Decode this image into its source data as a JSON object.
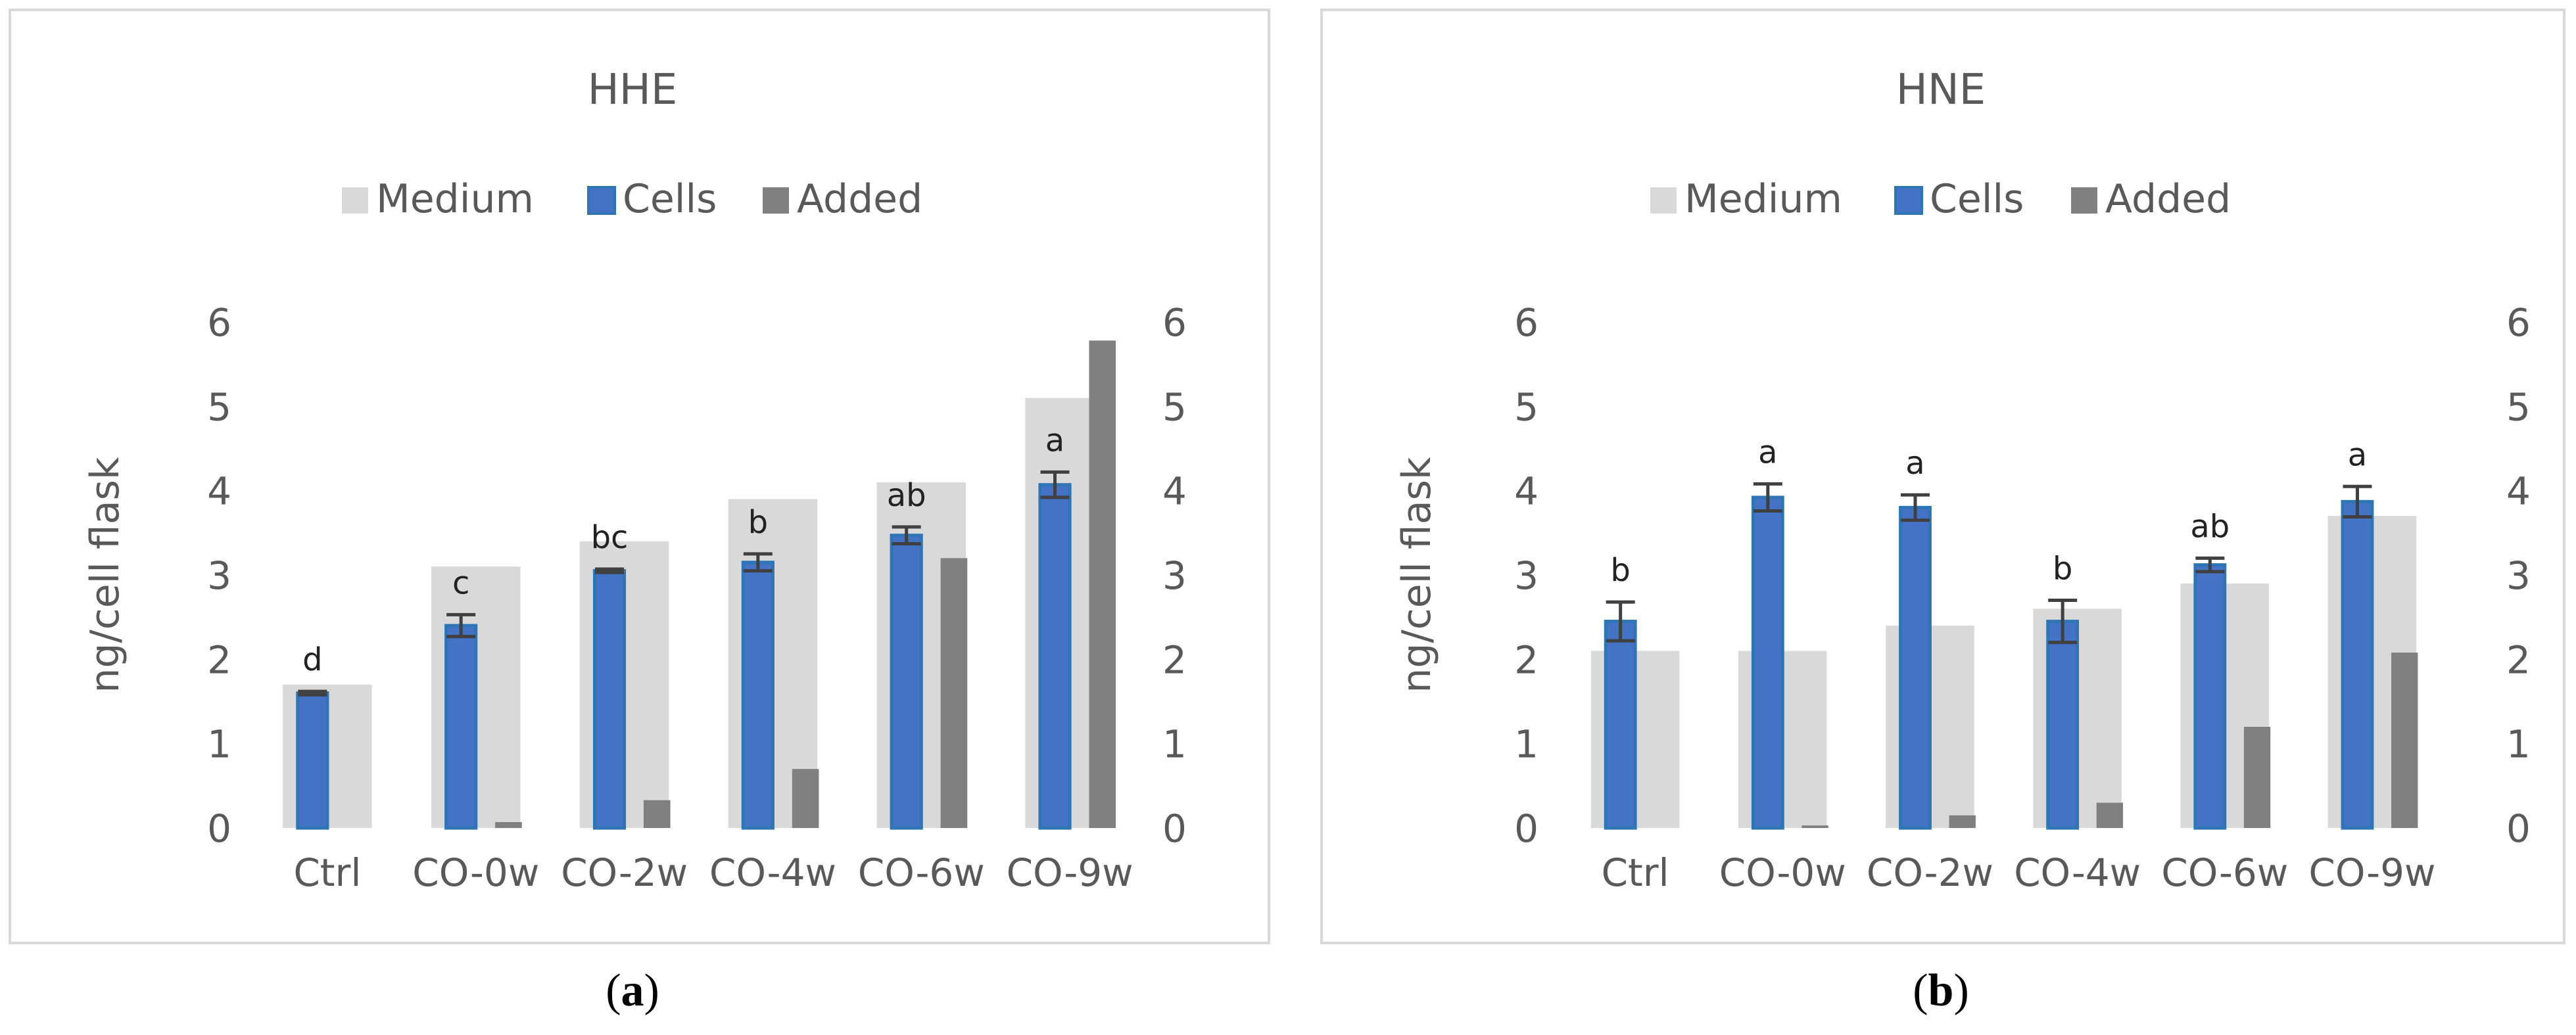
{
  "colors": {
    "medium": "#d9d9d9",
    "cells": "#4472c4",
    "cells_border": "#2e75b6",
    "added": "#808080",
    "error": "#404040",
    "text": "#595959",
    "frame": "#d9d9d9"
  },
  "chart_data": [
    {
      "type": "bar",
      "panel_label": "a",
      "title": "HHE",
      "ylabel": "ng/cell flask",
      "ylim": [
        0,
        6
      ],
      "yticks": [
        "0",
        "1",
        "2",
        "3",
        "4",
        "5",
        "6"
      ],
      "y2ticks": [
        "0",
        "1",
        "2",
        "3",
        "4",
        "5",
        "6"
      ],
      "legend_position": "top",
      "categories": [
        "Ctrl",
        "CO-0w",
        "CO-2w",
        "CO-4w",
        "CO-6w",
        "CO-9w"
      ],
      "series": [
        {
          "name": "Medium",
          "axis": "secondary",
          "values": [
            1.7,
            3.1,
            3.4,
            3.9,
            4.1,
            5.1
          ]
        },
        {
          "name": "Cells",
          "axis": "primary",
          "values": [
            1.6,
            2.4,
            3.05,
            3.15,
            3.47,
            4.07
          ],
          "errors": [
            0.02,
            0.13,
            0.02,
            0.1,
            0.1,
            0.15
          ]
        },
        {
          "name": "Added",
          "axis": "secondary",
          "values": [
            0,
            0.07,
            0.33,
            0.7,
            3.2,
            5.78
          ]
        }
      ],
      "annotations": [
        "d",
        "c",
        "bc",
        "b",
        "ab",
        "a"
      ]
    },
    {
      "type": "bar",
      "panel_label": "b",
      "title": "HNE",
      "ylabel": "ng/cell flask",
      "ylim": [
        0,
        6
      ],
      "yticks": [
        "0",
        "1",
        "2",
        "3",
        "4",
        "5",
        "6"
      ],
      "y2ticks": [
        "0",
        "1",
        "2",
        "3",
        "4",
        "5",
        "6"
      ],
      "legend_position": "top",
      "categories": [
        "Ctrl",
        "CO-0w",
        "CO-2w",
        "CO-4w",
        "CO-6w",
        "CO-9w"
      ],
      "series": [
        {
          "name": "Medium",
          "axis": "secondary",
          "values": [
            2.1,
            2.1,
            2.4,
            2.6,
            2.9,
            3.7
          ]
        },
        {
          "name": "Cells",
          "axis": "primary",
          "values": [
            2.45,
            3.92,
            3.8,
            2.45,
            3.12,
            3.87
          ],
          "errors": [
            0.23,
            0.16,
            0.15,
            0.25,
            0.08,
            0.18
          ]
        },
        {
          "name": "Added",
          "axis": "secondary",
          "values": [
            0,
            0.03,
            0.15,
            0.3,
            1.2,
            2.08
          ]
        }
      ],
      "annotations": [
        "b",
        "a",
        "a",
        "b",
        "ab",
        "a"
      ]
    }
  ]
}
